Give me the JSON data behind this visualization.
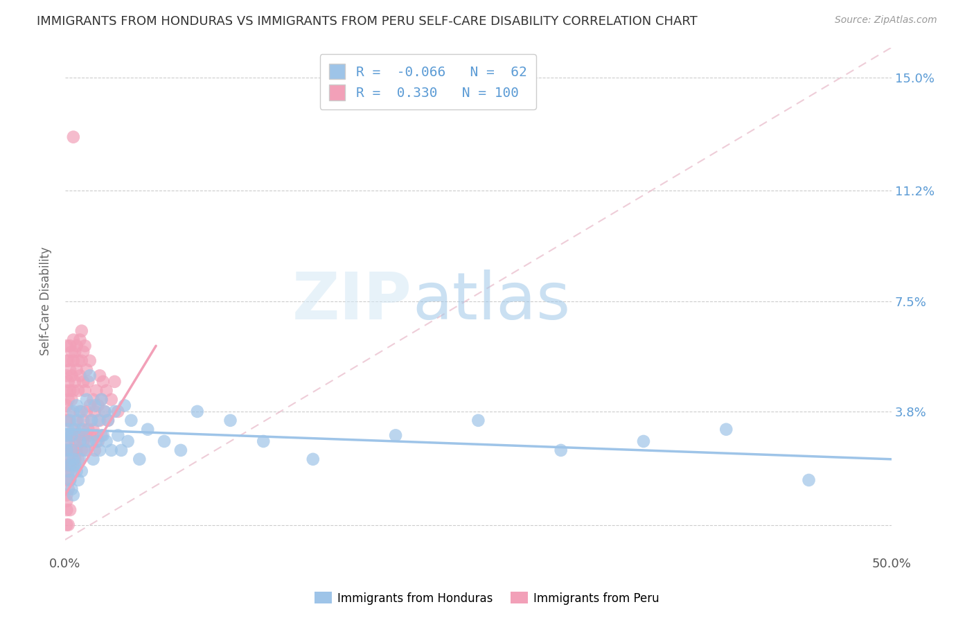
{
  "title": "IMMIGRANTS FROM HONDURAS VS IMMIGRANTS FROM PERU SELF-CARE DISABILITY CORRELATION CHART",
  "source": "Source: ZipAtlas.com",
  "ylabel": "Self-Care Disability",
  "xmin": 0.0,
  "xmax": 0.5,
  "ymin": -0.01,
  "ymax": 0.16,
  "yticks": [
    0.0,
    0.038,
    0.075,
    0.112,
    0.15
  ],
  "ytick_labels": [
    "",
    "3.8%",
    "7.5%",
    "11.2%",
    "15.0%"
  ],
  "xticks": [
    0.0,
    0.5
  ],
  "xtick_labels": [
    "0.0%",
    "50.0%"
  ],
  "r_honduras": -0.066,
  "n_honduras": 62,
  "r_peru": 0.33,
  "n_peru": 100,
  "color_honduras": "#9ec4e8",
  "color_peru": "#f2a0b8",
  "watermark_text": "ZIP",
  "watermark_text2": "atlas",
  "legend_label_honduras": "Immigrants from Honduras",
  "legend_label_peru": "Immigrants from Peru",
  "background_color": "#ffffff",
  "grid_color": "#cccccc",
  "title_color": "#333333",
  "tick_label_color_right": "#5b9bd5",
  "honduras_scatter": [
    [
      0.001,
      0.03
    ],
    [
      0.001,
      0.028
    ],
    [
      0.001,
      0.025
    ],
    [
      0.002,
      0.032
    ],
    [
      0.002,
      0.022
    ],
    [
      0.002,
      0.018
    ],
    [
      0.003,
      0.035
    ],
    [
      0.003,
      0.02
    ],
    [
      0.003,
      0.015
    ],
    [
      0.004,
      0.03
    ],
    [
      0.004,
      0.025
    ],
    [
      0.004,
      0.012
    ],
    [
      0.005,
      0.038
    ],
    [
      0.005,
      0.022
    ],
    [
      0.005,
      0.01
    ],
    [
      0.006,
      0.032
    ],
    [
      0.006,
      0.02
    ],
    [
      0.007,
      0.04
    ],
    [
      0.007,
      0.018
    ],
    [
      0.008,
      0.035
    ],
    [
      0.008,
      0.015
    ],
    [
      0.009,
      0.028
    ],
    [
      0.009,
      0.022
    ],
    [
      0.01,
      0.038
    ],
    [
      0.01,
      0.018
    ],
    [
      0.011,
      0.032
    ],
    [
      0.012,
      0.025
    ],
    [
      0.013,
      0.042
    ],
    [
      0.014,
      0.028
    ],
    [
      0.015,
      0.05
    ],
    [
      0.016,
      0.035
    ],
    [
      0.017,
      0.022
    ],
    [
      0.018,
      0.04
    ],
    [
      0.019,
      0.028
    ],
    [
      0.02,
      0.035
    ],
    [
      0.021,
      0.025
    ],
    [
      0.022,
      0.042
    ],
    [
      0.023,
      0.03
    ],
    [
      0.024,
      0.038
    ],
    [
      0.025,
      0.028
    ],
    [
      0.026,
      0.035
    ],
    [
      0.028,
      0.025
    ],
    [
      0.03,
      0.038
    ],
    [
      0.032,
      0.03
    ],
    [
      0.034,
      0.025
    ],
    [
      0.036,
      0.04
    ],
    [
      0.038,
      0.028
    ],
    [
      0.04,
      0.035
    ],
    [
      0.045,
      0.022
    ],
    [
      0.05,
      0.032
    ],
    [
      0.06,
      0.028
    ],
    [
      0.07,
      0.025
    ],
    [
      0.08,
      0.038
    ],
    [
      0.1,
      0.035
    ],
    [
      0.12,
      0.028
    ],
    [
      0.15,
      0.022
    ],
    [
      0.2,
      0.03
    ],
    [
      0.25,
      0.035
    ],
    [
      0.3,
      0.025
    ],
    [
      0.35,
      0.028
    ],
    [
      0.4,
      0.032
    ],
    [
      0.45,
      0.015
    ]
  ],
  "peru_scatter": [
    [
      0.001,
      0.03
    ],
    [
      0.001,
      0.025
    ],
    [
      0.001,
      0.02
    ],
    [
      0.001,
      0.015
    ],
    [
      0.001,
      0.01
    ],
    [
      0.001,
      0.008
    ],
    [
      0.001,
      0.005
    ],
    [
      0.001,
      0.035
    ],
    [
      0.001,
      0.04
    ],
    [
      0.001,
      0.045
    ],
    [
      0.001,
      0.05
    ],
    [
      0.001,
      0.055
    ],
    [
      0.001,
      0.06
    ],
    [
      0.002,
      0.028
    ],
    [
      0.002,
      0.022
    ],
    [
      0.002,
      0.018
    ],
    [
      0.002,
      0.012
    ],
    [
      0.002,
      0.035
    ],
    [
      0.002,
      0.042
    ],
    [
      0.002,
      0.048
    ],
    [
      0.002,
      0.055
    ],
    [
      0.003,
      0.025
    ],
    [
      0.003,
      0.02
    ],
    [
      0.003,
      0.015
    ],
    [
      0.003,
      0.038
    ],
    [
      0.003,
      0.045
    ],
    [
      0.003,
      0.052
    ],
    [
      0.003,
      0.06
    ],
    [
      0.004,
      0.03
    ],
    [
      0.004,
      0.025
    ],
    [
      0.004,
      0.018
    ],
    [
      0.004,
      0.042
    ],
    [
      0.004,
      0.05
    ],
    [
      0.004,
      0.058
    ],
    [
      0.005,
      0.032
    ],
    [
      0.005,
      0.025
    ],
    [
      0.005,
      0.02
    ],
    [
      0.005,
      0.045
    ],
    [
      0.005,
      0.055
    ],
    [
      0.005,
      0.062
    ],
    [
      0.006,
      0.028
    ],
    [
      0.006,
      0.022
    ],
    [
      0.006,
      0.048
    ],
    [
      0.006,
      0.058
    ],
    [
      0.007,
      0.035
    ],
    [
      0.007,
      0.025
    ],
    [
      0.007,
      0.052
    ],
    [
      0.007,
      0.06
    ],
    [
      0.008,
      0.03
    ],
    [
      0.008,
      0.022
    ],
    [
      0.008,
      0.045
    ],
    [
      0.008,
      0.055
    ],
    [
      0.009,
      0.038
    ],
    [
      0.009,
      0.028
    ],
    [
      0.009,
      0.05
    ],
    [
      0.009,
      0.062
    ],
    [
      0.01,
      0.032
    ],
    [
      0.01,
      0.025
    ],
    [
      0.01,
      0.055
    ],
    [
      0.01,
      0.065
    ],
    [
      0.011,
      0.035
    ],
    [
      0.011,
      0.028
    ],
    [
      0.011,
      0.048
    ],
    [
      0.011,
      0.058
    ],
    [
      0.012,
      0.03
    ],
    [
      0.012,
      0.045
    ],
    [
      0.012,
      0.06
    ],
    [
      0.013,
      0.038
    ],
    [
      0.013,
      0.025
    ],
    [
      0.013,
      0.052
    ],
    [
      0.014,
      0.032
    ],
    [
      0.014,
      0.048
    ],
    [
      0.015,
      0.04
    ],
    [
      0.015,
      0.03
    ],
    [
      0.015,
      0.055
    ],
    [
      0.016,
      0.035
    ],
    [
      0.016,
      0.028
    ],
    [
      0.017,
      0.042
    ],
    [
      0.017,
      0.032
    ],
    [
      0.018,
      0.038
    ],
    [
      0.018,
      0.025
    ],
    [
      0.019,
      0.045
    ],
    [
      0.019,
      0.03
    ],
    [
      0.02,
      0.04
    ],
    [
      0.02,
      0.028
    ],
    [
      0.021,
      0.035
    ],
    [
      0.021,
      0.05
    ],
    [
      0.022,
      0.042
    ],
    [
      0.022,
      0.03
    ],
    [
      0.023,
      0.048
    ],
    [
      0.024,
      0.038
    ],
    [
      0.025,
      0.045
    ],
    [
      0.026,
      0.035
    ],
    [
      0.028,
      0.042
    ],
    [
      0.03,
      0.048
    ],
    [
      0.032,
      0.038
    ],
    [
      0.005,
      0.13
    ],
    [
      0.001,
      0.0
    ],
    [
      0.002,
      0.0
    ],
    [
      0.003,
      0.005
    ]
  ],
  "honduras_line": {
    "x0": 0.0,
    "y0": 0.032,
    "x1": 0.5,
    "y1": 0.022
  },
  "peru_line": {
    "x0": 0.0,
    "y0": 0.01,
    "x1": 0.055,
    "y1": 0.06
  },
  "peru_dashed_line": {
    "x0": 0.0,
    "y0": -0.005,
    "x1": 0.5,
    "y1": 0.16
  }
}
